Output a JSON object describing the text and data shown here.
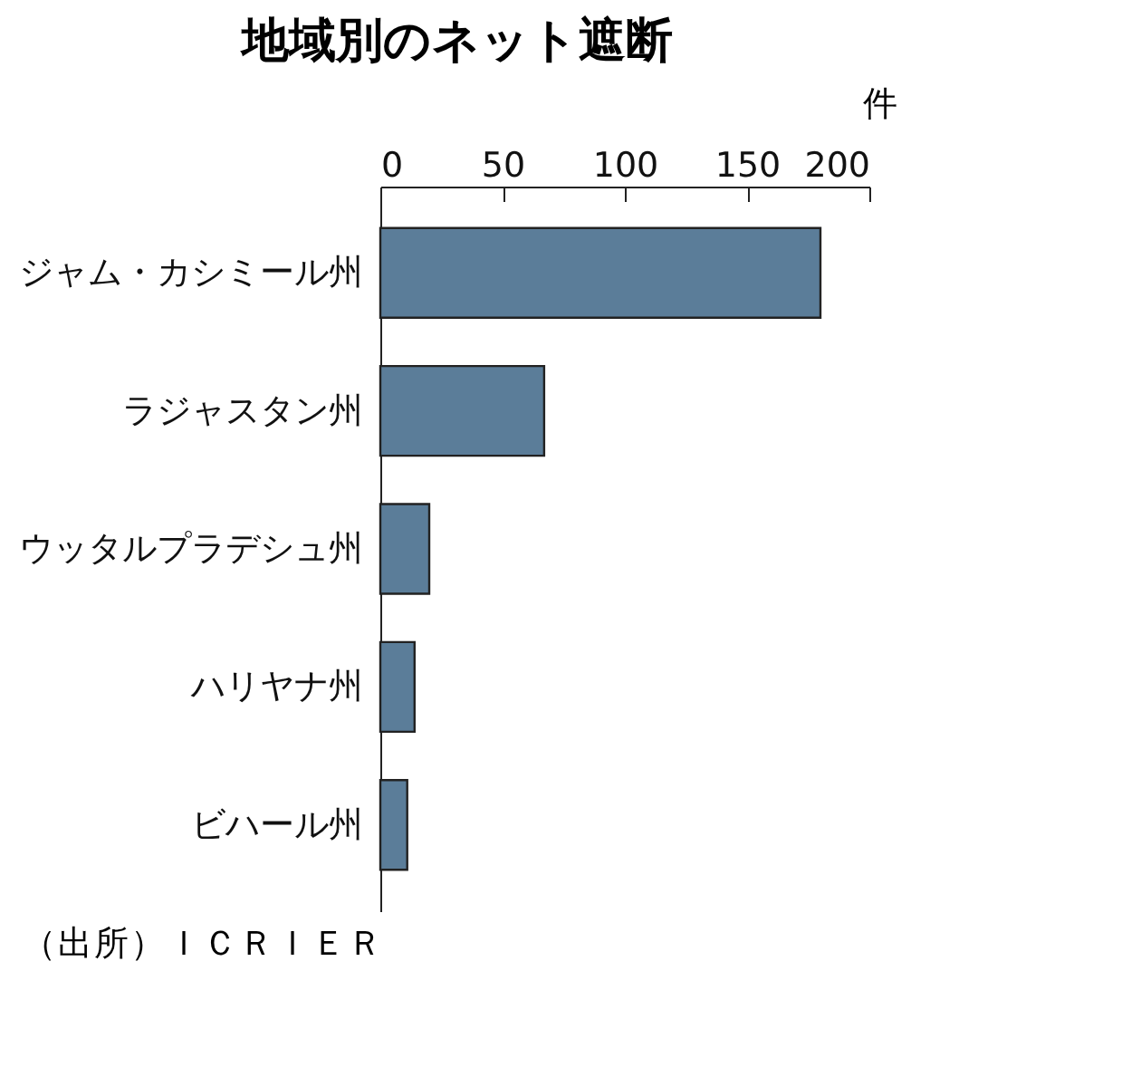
{
  "chart_data": {
    "type": "bar",
    "orientation": "horizontal",
    "title": "地域別のネット遮断",
    "xlabel": "件",
    "categories": [
      "ジャム・カシミール州",
      "ラジャスタン州",
      "ウッタルプラデシュ州",
      "ハリヤナ州",
      "ビハール州"
    ],
    "values": [
      180,
      67,
      20,
      14,
      11
    ],
    "color": "#5b7d99",
    "xlim": [
      0,
      200
    ],
    "xticks": [
      0,
      50,
      100,
      150,
      200
    ],
    "grid": false,
    "annotations": [
      "（出所）ＩＣＲＩＥＲ"
    ]
  }
}
